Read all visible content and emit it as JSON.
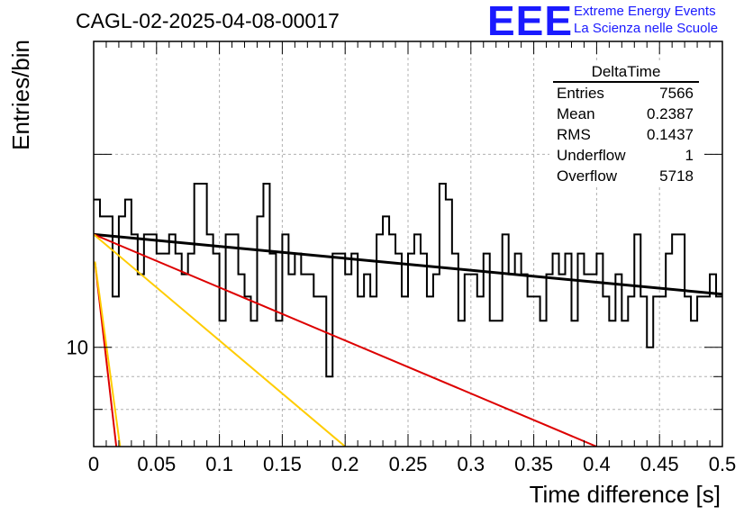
{
  "title": "CAGL-02-2025-04-08-00017",
  "logo": {
    "mark": "EEE",
    "line1": "Extreme Energy Events",
    "line2": "La Scienza nelle Scuole"
  },
  "stats": {
    "name": "DeltaTime",
    "rows": [
      {
        "label": "Entries",
        "value": "7566"
      },
      {
        "label": "Mean",
        "value": "0.2387"
      },
      {
        "label": "RMS",
        "value": "0.1437"
      },
      {
        "label": "Underflow",
        "value": "1"
      },
      {
        "label": "Overflow",
        "value": "5718"
      }
    ]
  },
  "chart_data": {
    "type": "histogram",
    "xlabel": "Time difference [s]",
    "ylabel": "Entries/bin",
    "xlim": [
      0,
      0.5
    ],
    "ylim": [
      7,
      30
    ],
    "yscale": "log",
    "grid": true,
    "x_ticks": [
      "0",
      "0.05",
      "0.1",
      "0.15",
      "0.2",
      "0.25",
      "0.3",
      "0.35",
      "0.4",
      "0.45",
      "0.5"
    ],
    "y_ticks": [
      "10"
    ],
    "bin_width": 0.005,
    "histogram_values": [
      17,
      16,
      16,
      12,
      16,
      17,
      15,
      13,
      15,
      15,
      14,
      14,
      15,
      14,
      13,
      14,
      18,
      18,
      15,
      14,
      11,
      15,
      15,
      13,
      12,
      11,
      16,
      18,
      14,
      11,
      15,
      13,
      14,
      13,
      13,
      12,
      12,
      9,
      14,
      14,
      13,
      14,
      12,
      13,
      12,
      15,
      16,
      15,
      14,
      12,
      14,
      15,
      14,
      12,
      13,
      18,
      17,
      14,
      11,
      13,
      13,
      12,
      14,
      11,
      11,
      15,
      13,
      14,
      13,
      12,
      12,
      11,
      13,
      14,
      13,
      14,
      11,
      14,
      13,
      13,
      14,
      12,
      11,
      13,
      11,
      12,
      15,
      12,
      10,
      12,
      12,
      14,
      15,
      15,
      12,
      11,
      12,
      12,
      13,
      12
    ],
    "series": [
      {
        "color": "#000000",
        "x": [
          0,
          0.5
        ],
        "y": [
          15.0,
          12.1
        ]
      },
      {
        "color": "#dd0000",
        "x": [
          0,
          0.4
        ],
        "y": [
          15.0,
          7.0
        ]
      },
      {
        "color": "#ffcc00",
        "x": [
          0,
          0.2
        ],
        "y": [
          15.0,
          7.0
        ]
      },
      {
        "color": "#dd0000",
        "x": [
          0.001,
          0.018
        ],
        "y": [
          13.6,
          7.0
        ]
      },
      {
        "color": "#ffcc00",
        "x": [
          0.001,
          0.021
        ],
        "y": [
          13.6,
          7.0
        ]
      }
    ]
  }
}
